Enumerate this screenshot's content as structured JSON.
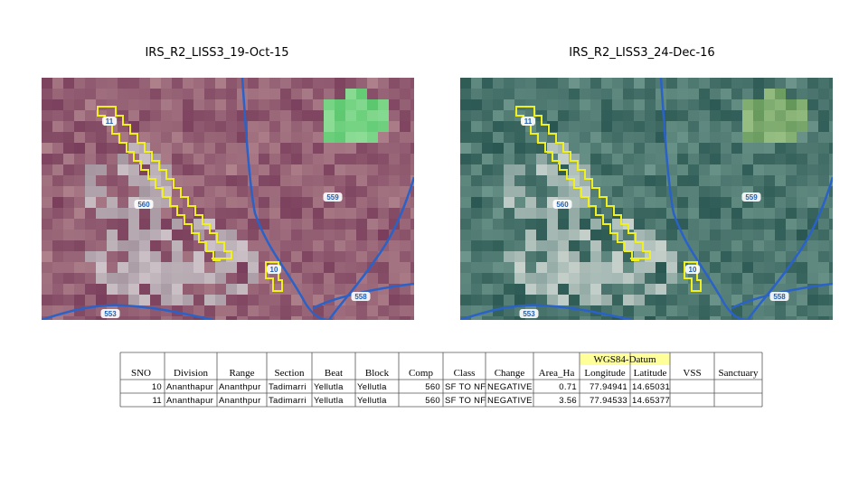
{
  "header": {
    "left_title": "IRS_R2_LISS3_19-Oct-15",
    "right_title": "IRS_R2_LISS3_24-Dec-16"
  },
  "map_labels": [
    "11",
    "10",
    "559",
    "560",
    "558",
    "553"
  ],
  "table": {
    "group_header": "WGS84-Datum",
    "columns": [
      "SNO",
      "Division",
      "Range",
      "Section",
      "Beat",
      "Block",
      "Comp",
      "Class",
      "Change",
      "Area_Ha",
      "Longitude",
      "Latitude",
      "VSS",
      "Sanctuary"
    ],
    "rows": [
      [
        "10",
        "Ananthapur",
        "Ananthpur",
        "Tadimarri",
        "Yellutla",
        "Yellutla",
        "560",
        "SF TO NF",
        "NEGATIVE",
        "0.71",
        "77.94941",
        "14.65031"
      ],
      [
        "11",
        "Ananthapur",
        "Ananthpur",
        "Tadimarri",
        "Yellutla",
        "Yellutla",
        "560",
        "SF TO NF",
        "NEGATIVE",
        "3.56",
        "77.94533",
        "14.65377"
      ]
    ]
  }
}
